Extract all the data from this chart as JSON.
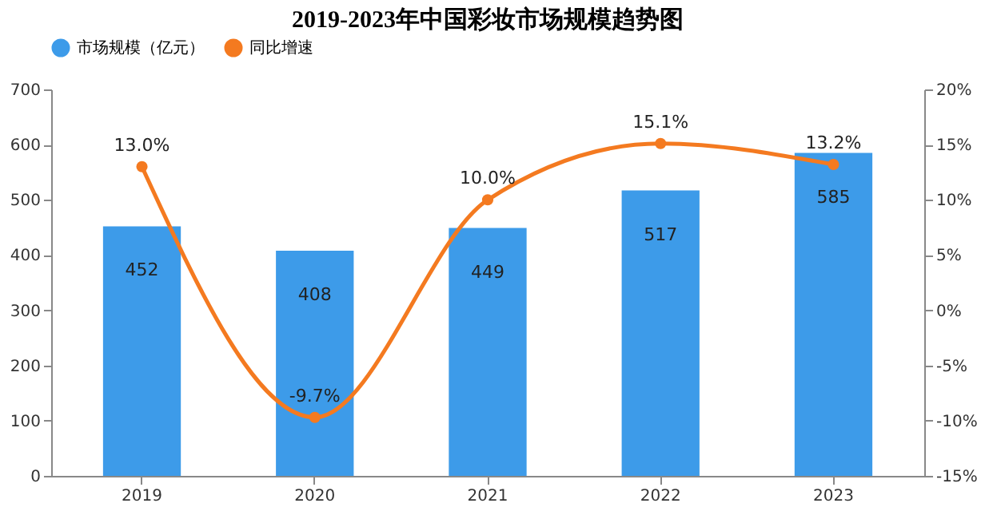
{
  "chart_data": {
    "type": "bar",
    "title": "2019-2023年中国彩妆市场规模趋势图",
    "categories": [
      "2019",
      "2020",
      "2021",
      "2022",
      "2023"
    ],
    "series": [
      {
        "name": "市场规模（亿元）",
        "color": "#3d9be9",
        "values": [
          452,
          408,
          449,
          517,
          585
        ],
        "value_labels": [
          "452",
          "408",
          "449",
          "517",
          "585"
        ]
      },
      {
        "name": "同比增速",
        "type": "line",
        "axis": "y2",
        "color": "#f47a20",
        "values": [
          13.0,
          -9.7,
          10.0,
          15.1,
          13.2
        ],
        "value_labels": [
          "13.0%",
          "-9.7%",
          "10.0%",
          "15.1%",
          "13.2%"
        ]
      }
    ],
    "ylim": [
      0,
      700
    ],
    "yticks": [
      0,
      100,
      200,
      300,
      400,
      500,
      600,
      700
    ],
    "y2lim": [
      -15,
      20
    ],
    "y2ticks": [
      {
        "value": -15,
        "label": "-15%"
      },
      {
        "value": -10,
        "label": "-10%"
      },
      {
        "value": -5,
        "label": "-5%"
      },
      {
        "value": 0,
        "label": "0%"
      },
      {
        "value": 5,
        "label": "5%"
      },
      {
        "value": 10,
        "label": "10%"
      },
      {
        "value": 15,
        "label": "15%"
      },
      {
        "value": 20,
        "label": "20%"
      }
    ],
    "legend": "top",
    "marker": "circle",
    "grid": false
  }
}
